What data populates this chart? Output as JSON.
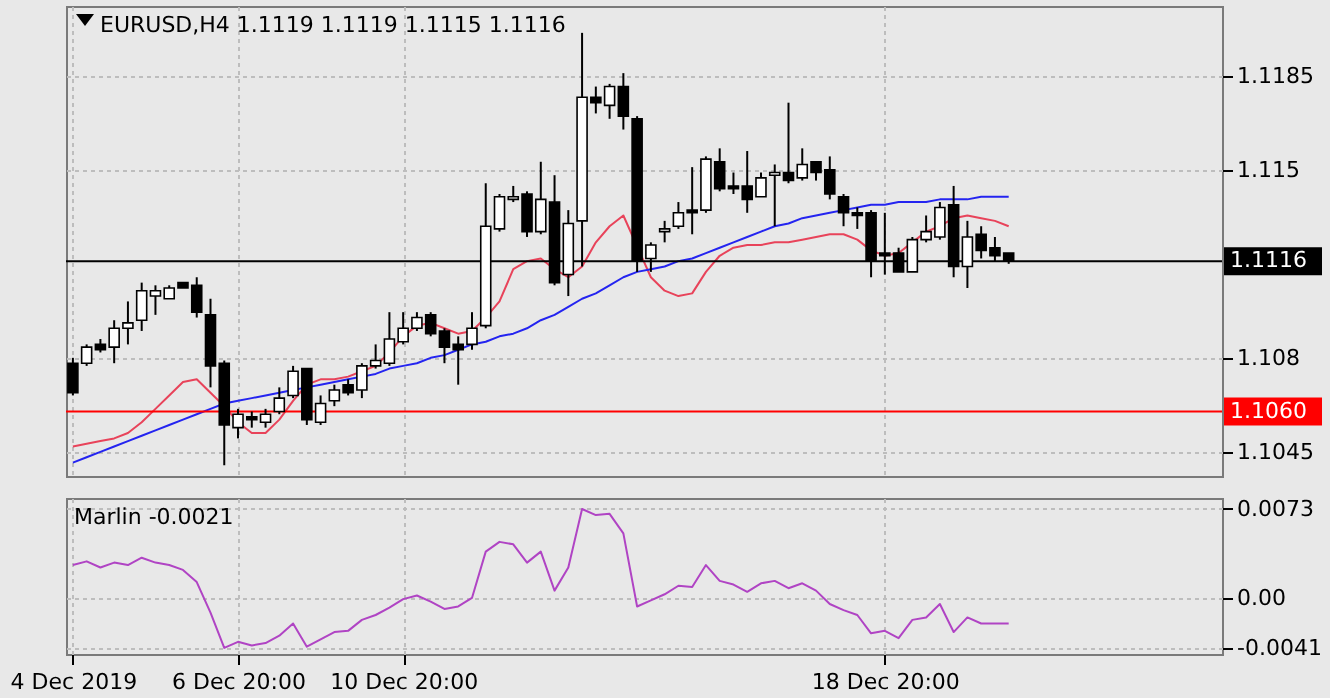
{
  "chart_data": [
    {
      "type": "candlestick",
      "title": "EURUSD,H4 1.1119 1.1119 1.1115 1.1116",
      "categories": [
        null,
        null,
        null,
        null,
        null,
        null,
        null,
        null,
        null,
        null,
        null,
        null,
        null,
        null,
        null,
        null,
        null,
        null,
        null,
        null,
        null,
        null,
        null,
        null,
        null,
        null,
        null,
        null,
        null,
        null,
        null,
        null,
        null,
        null,
        null,
        null,
        null,
        null,
        null,
        null,
        null,
        null,
        null,
        null,
        null,
        null,
        null,
        null,
        null,
        null,
        null,
        null,
        null,
        null,
        null,
        null,
        null,
        null,
        null,
        null,
        null,
        null,
        null,
        null,
        null,
        null,
        null,
        null,
        null,
        null,
        null,
        null,
        null,
        null,
        null,
        null,
        null,
        null,
        null,
        null,
        null,
        null,
        null,
        null
      ],
      "ohlc": [
        [
          1.1078,
          1.108,
          1.1066,
          1.1067
        ],
        [
          1.1078,
          1.1085,
          1.1077,
          1.1084
        ],
        [
          1.1085,
          1.1087,
          1.1082,
          1.1083
        ],
        [
          1.1084,
          1.1094,
          1.1078,
          1.1091
        ],
        [
          1.1091,
          1.1101,
          1.1085,
          1.1093
        ],
        [
          1.1094,
          1.1108,
          1.109,
          1.1105
        ],
        [
          1.1103,
          1.1107,
          1.1096,
          1.1105
        ],
        [
          1.1102,
          1.1107,
          1.1102,
          1.1106
        ],
        [
          1.1108,
          1.1108,
          1.1106,
          1.1106
        ],
        [
          1.1107,
          1.111,
          1.1095,
          1.1097
        ],
        [
          1.1096,
          1.1102,
          1.1069,
          1.1077
        ],
        [
          1.1078,
          1.1079,
          1.104,
          1.1055
        ],
        [
          1.1054,
          1.1061,
          1.105,
          1.1059
        ],
        [
          1.1058,
          1.106,
          1.1054,
          1.1057
        ],
        [
          1.1056,
          1.1061,
          1.1054,
          1.1059
        ],
        [
          1.106,
          1.1069,
          1.1059,
          1.1065
        ],
        [
          1.1066,
          1.1077,
          1.1065,
          1.1075
        ],
        [
          1.1076,
          1.1076,
          1.1055,
          1.1057
        ],
        [
          1.1056,
          1.1066,
          1.1055,
          1.1063
        ],
        [
          1.1064,
          1.107,
          1.1062,
          1.1068
        ],
        [
          1.107,
          1.1072,
          1.1066,
          1.1067
        ],
        [
          1.1068,
          1.1078,
          1.1065,
          1.1077
        ],
        [
          1.1077,
          1.1085,
          1.1076,
          1.1079
        ],
        [
          1.1078,
          1.1097,
          1.1077,
          1.1087
        ],
        [
          1.1086,
          1.1097,
          1.1085,
          1.1091
        ],
        [
          1.1091,
          1.1097,
          1.109,
          1.1095
        ],
        [
          1.1096,
          1.1097,
          1.1088,
          1.1089
        ],
        [
          1.109,
          1.1091,
          1.1078,
          1.1084
        ],
        [
          1.1085,
          1.1088,
          1.107,
          1.1083
        ],
        [
          1.1085,
          1.1097,
          1.1083,
          1.1091
        ],
        [
          1.1092,
          1.1145,
          1.1091,
          1.1129
        ],
        [
          1.1128,
          1.1141,
          1.1127,
          1.114
        ],
        [
          1.1139,
          1.1144,
          1.1138,
          1.114
        ],
        [
          1.1141,
          1.1142,
          1.1125,
          1.1127
        ],
        [
          1.1127,
          1.1153,
          1.1126,
          1.1139
        ],
        [
          1.1138,
          1.1148,
          1.1107,
          1.1108
        ],
        [
          1.1111,
          1.1135,
          1.1103,
          1.113
        ],
        [
          1.1131,
          1.1201,
          1.1114,
          1.1177
        ],
        [
          1.1177,
          1.1181,
          1.1171,
          1.1175
        ],
        [
          1.1174,
          1.1182,
          1.1169,
          1.1181
        ],
        [
          1.1181,
          1.1186,
          1.1165,
          1.117
        ],
        [
          1.1169,
          1.117,
          1.1112,
          1.1116
        ],
        [
          1.1117,
          1.1123,
          1.1112,
          1.1122
        ],
        [
          1.1127,
          1.1131,
          1.1123,
          1.1128
        ],
        [
          1.1129,
          1.1138,
          1.1128,
          1.1134
        ],
        [
          1.1135,
          1.1151,
          1.1126,
          1.1134
        ],
        [
          1.1135,
          1.1155,
          1.1134,
          1.1154
        ],
        [
          1.1153,
          1.1158,
          1.1142,
          1.1143
        ],
        [
          1.1144,
          1.1149,
          1.1141,
          1.1143
        ],
        [
          1.1144,
          1.1157,
          1.1134,
          1.1139
        ],
        [
          1.114,
          1.1149,
          1.114,
          1.1147
        ],
        [
          1.1148,
          1.1152,
          1.1129,
          1.1149
        ],
        [
          1.1149,
          1.1175,
          1.1145,
          1.1146
        ],
        [
          1.1147,
          1.1158,
          1.1146,
          1.1152
        ],
        [
          1.1153,
          1.1153,
          1.1146,
          1.1149
        ],
        [
          1.115,
          1.1155,
          1.1139,
          1.1141
        ],
        [
          1.114,
          1.1141,
          1.1129,
          1.1134
        ],
        [
          1.1134,
          1.1136,
          1.1128,
          1.1133
        ],
        [
          1.1134,
          1.1135,
          1.111,
          1.1116
        ],
        [
          1.1119,
          1.1134,
          1.1111,
          1.1118
        ],
        [
          1.1119,
          1.1121,
          1.1112,
          1.1112
        ],
        [
          1.1112,
          1.1125,
          1.1112,
          1.1124
        ],
        [
          1.1124,
          1.1133,
          1.1123,
          1.1127
        ],
        [
          1.1125,
          1.1138,
          1.1124,
          1.1136
        ],
        [
          1.1137,
          1.1144,
          1.111,
          1.1114
        ],
        [
          1.1114,
          1.1131,
          1.1106,
          1.1125
        ],
        [
          1.1126,
          1.1129,
          1.1117,
          1.112
        ],
        [
          1.1121,
          1.1125,
          1.1116,
          1.1118
        ],
        [
          1.1119,
          1.1119,
          1.1115,
          1.1116
        ],
        null,
        null,
        null,
        null,
        null,
        null,
        null,
        null,
        null,
        null,
        null,
        null,
        null,
        null,
        null
      ],
      "series": [
        {
          "type": "line",
          "color": "#e8435a",
          "values": [
            1.1047,
            1.1048,
            1.1049,
            1.105,
            1.1052,
            1.1056,
            1.1061,
            1.1066,
            1.1071,
            1.1072,
            1.1067,
            1.1062,
            1.1056,
            1.1052,
            1.1052,
            1.1057,
            1.1064,
            1.107,
            1.1072,
            1.1072,
            1.1073,
            1.1075,
            1.1077,
            1.1082,
            1.1088,
            1.1092,
            1.1093,
            1.1091,
            1.1089,
            1.109,
            1.1095,
            1.1101,
            1.1113,
            1.1116,
            1.1117,
            1.1113,
            1.111,
            1.1114,
            1.1123,
            1.1129,
            1.1133,
            null,
            1.111,
            1.1105,
            1.1103,
            1.1104,
            1.1112,
            1.1118,
            1.1121,
            1.1122,
            1.1122,
            1.1123,
            1.1123,
            1.1124,
            1.1125,
            1.1126,
            1.1126,
            1.1124,
            1.112,
            1.1118,
            1.1119,
            1.1123,
            1.1127,
            1.1129,
            1.1132,
            1.1133,
            1.1132,
            1.1131,
            1.1129,
            null,
            null,
            null,
            null,
            null,
            null,
            null,
            null,
            null,
            null,
            null,
            null,
            null,
            null,
            null
          ]
        },
        {
          "type": "line",
          "color": "#2424f0",
          "values": [
            1.1041,
            1.1043,
            1.1045,
            1.1047,
            1.1049,
            1.1051,
            1.1053,
            1.1055,
            1.1057,
            1.1059,
            1.1061,
            1.1063,
            1.1064,
            1.1065,
            1.1066,
            1.1067,
            1.1068,
            1.1069,
            1.107,
            1.1071,
            1.1072,
            1.1073,
            1.1074,
            1.1076,
            1.1077,
            1.1078,
            1.108,
            1.1081,
            1.1083,
            1.1085,
            1.1086,
            1.1088,
            1.1089,
            1.1091,
            1.1094,
            1.1096,
            1.1099,
            1.1102,
            1.1104,
            1.1107,
            1.111,
            1.1112,
            1.1113,
            1.1114,
            1.1116,
            1.1117,
            1.1119,
            1.1121,
            1.1123,
            1.1125,
            1.1127,
            1.1129,
            1.113,
            1.1132,
            1.1133,
            1.1134,
            1.1135,
            1.1136,
            1.1137,
            1.1137,
            1.1138,
            1.1138,
            1.1138,
            1.1139,
            1.1139,
            1.1139,
            1.114,
            1.114,
            1.114,
            null,
            null,
            null,
            null,
            null,
            null,
            null,
            null,
            null,
            null,
            null,
            null,
            null,
            null,
            null
          ]
        }
      ],
      "ylim": [
        1.1036,
        1.1211
      ],
      "yticks": [
        1.1045,
        1.108,
        1.115,
        1.1185
      ],
      "ref_lines": [
        {
          "axis": "y",
          "value": 1.1116,
          "label": "1.1116",
          "color": "#000000"
        },
        {
          "axis": "y",
          "value": 1.106,
          "label": "1.1060",
          "color": "#ff0000"
        }
      ],
      "grid": true,
      "tick_labels": "y"
    },
    {
      "type": "line",
      "title": "Marlin -0.0021",
      "categories": [
        "4 Dec 2019",
        null,
        null,
        null,
        null,
        null,
        null,
        null,
        null,
        null,
        null,
        null,
        "6 Dec 20:00",
        null,
        null,
        null,
        null,
        null,
        null,
        null,
        null,
        null,
        null,
        null,
        "10 Dec 20:00",
        null,
        null,
        null,
        null,
        null,
        null,
        null,
        null,
        null,
        null,
        null,
        null,
        null,
        null,
        null,
        null,
        null,
        null,
        null,
        null,
        null,
        null,
        null,
        null,
        null,
        null,
        null,
        null,
        null,
        null,
        null,
        null,
        null,
        null,
        "18 Dec 20:00",
        null,
        null,
        null,
        null,
        null,
        null,
        null,
        null,
        null,
        null,
        null,
        null,
        null,
        null,
        null,
        null,
        null,
        null,
        null,
        null,
        null,
        null,
        null,
        null
      ],
      "series": [
        {
          "color": "#b044c4",
          "values": [
            0.0027,
            0.003,
            0.0025,
            0.0029,
            0.0027,
            0.0033,
            0.0029,
            0.0027,
            0.0023,
            0.0013,
            -0.0012,
            -0.0041,
            -0.0036,
            -0.0039,
            -0.0037,
            -0.0031,
            -0.0021,
            -0.004,
            -0.0034,
            -0.0028,
            -0.0027,
            -0.0018,
            -0.0014,
            -0.0008,
            -0.0001,
            0.0002,
            -0.0003,
            -0.0009,
            -0.0007,
            0.0,
            0.0038,
            0.0046,
            0.0044,
            0.0029,
            0.0038,
            0.0006,
            0.0025,
            0.0073,
            0.0068,
            0.0069,
            0.0053,
            -0.0007,
            -0.0002,
            0.0003,
            0.001,
            0.0009,
            0.0027,
            0.0014,
            0.0011,
            0.0005,
            0.0012,
            0.0014,
            0.0008,
            0.0012,
            0.0006,
            -0.0005,
            -0.001,
            -0.0014,
            -0.0029,
            -0.0027,
            -0.0033,
            -0.0018,
            -0.0016,
            -0.0005,
            -0.0028,
            -0.0016,
            -0.0021,
            -0.0021,
            -0.0021,
            null,
            null,
            null,
            null,
            null,
            null,
            null,
            null,
            null,
            null,
            null,
            null,
            null,
            null,
            null
          ]
        }
      ],
      "ylim": [
        -0.0046,
        0.0082
      ],
      "yticks": [
        -0.0041,
        {
          "value": 0,
          "label": "0.00"
        },
        0.0073
      ],
      "grid": true
    }
  ]
}
